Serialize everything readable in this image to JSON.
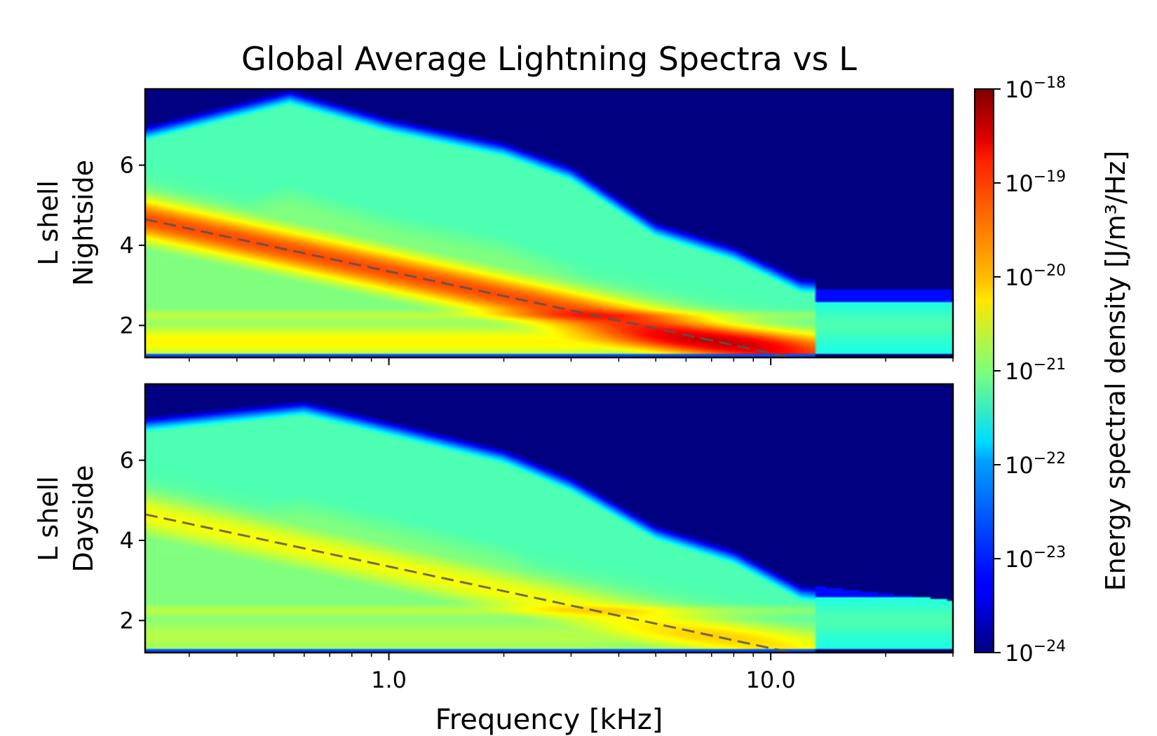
{
  "chart_data": {
    "type": "heatmap",
    "title": "Global Average Lightning Spectra vs L",
    "xlabel": "Frequency [kHz]",
    "x_scale": "log",
    "xlim": [
      0.23,
      30
    ],
    "x_tick_labels": [
      "1.0",
      "10.0"
    ],
    "x_tick_values": [
      1.0,
      10.0
    ],
    "ylim": [
      1.2,
      7.9
    ],
    "y_tick_values": [
      2,
      4,
      6
    ],
    "y_tick_labels": [
      "2",
      "4",
      "6"
    ],
    "colormap": "jet",
    "color_scale": "log",
    "colorbar": {
      "label": "Energy spectral density [J/m³/Hz]",
      "range": [
        1e-24,
        1e-18
      ],
      "tick_labels": [
        {
          "base": "10",
          "exp": "−24",
          "value": -24
        },
        {
          "base": "10",
          "exp": "−23",
          "value": -23
        },
        {
          "base": "10",
          "exp": "−22",
          "value": -22
        },
        {
          "base": "10",
          "exp": "−21",
          "value": -21
        },
        {
          "base": "10",
          "exp": "−20",
          "value": -20
        },
        {
          "base": "10",
          "exp": "−19",
          "value": -19
        },
        {
          "base": "10",
          "exp": "−18",
          "value": -18
        }
      ]
    },
    "panels": [
      {
        "ylabel_line1": "L shell",
        "ylabel_line2": "Nightside",
        "dashed_line": [
          {
            "f": 0.23,
            "L": 4.65
          },
          {
            "f": 11.3,
            "L": 1.2
          }
        ],
        "ridge_peak_log10": -19.2,
        "cutoff_freq_khz": 13.0,
        "top_boundary": [
          [
            0.23,
            7.0
          ],
          [
            0.55,
            7.9
          ],
          [
            1.0,
            7.2
          ],
          [
            2.0,
            6.6
          ],
          [
            3.0,
            6.0
          ],
          [
            5.0,
            4.6
          ],
          [
            8.0,
            4.0
          ],
          [
            12.0,
            3.2
          ],
          [
            30.0,
            3.0
          ]
        ]
      },
      {
        "ylabel_line1": "L shell",
        "ylabel_line2": "Dayside",
        "dashed_line": [
          {
            "f": 0.23,
            "L": 4.65
          },
          {
            "f": 11.3,
            "L": 1.2
          }
        ],
        "ridge_peak_log10": -20.3,
        "cutoff_freq_khz": 13.0,
        "top_boundary": [
          [
            0.23,
            7.1
          ],
          [
            0.6,
            7.5
          ],
          [
            1.0,
            7.0
          ],
          [
            2.0,
            6.3
          ],
          [
            3.0,
            5.6
          ],
          [
            5.0,
            4.4
          ],
          [
            8.0,
            3.8
          ],
          [
            12.0,
            2.9
          ],
          [
            30.0,
            2.5
          ]
        ]
      }
    ]
  }
}
